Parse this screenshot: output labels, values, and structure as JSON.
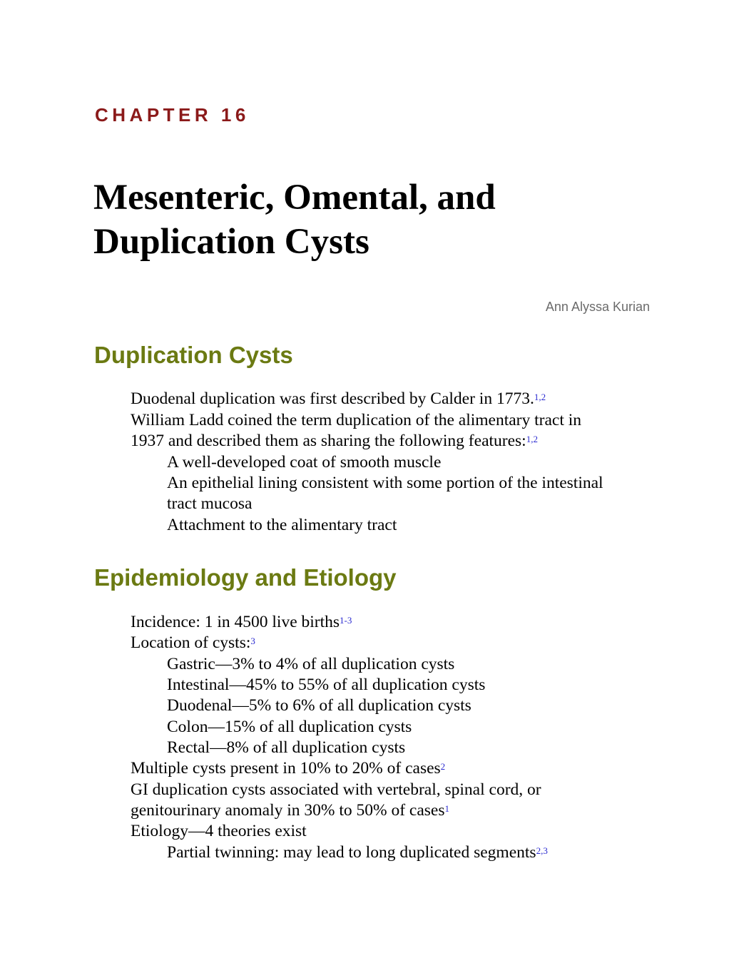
{
  "chapter_label": "CHAPTER 16",
  "title_line1": "Mesenteric, Omental, and",
  "title_line2": "Duplication Cysts",
  "author": "Ann Alyssa Kurian",
  "section1": {
    "heading": "Duplication Cysts",
    "lines": [
      {
        "text": "Duodenal duplication was first described by Calder in 1773.",
        "ref": "1,2"
      },
      {
        "text": "William Ladd coined the term duplication of the alimentary tract in",
        "ref": ""
      },
      {
        "text": "1937 and described them as sharing the following features:",
        "ref": "1,2"
      },
      {
        "text": "A well-developed coat of smooth muscle",
        "ref": ""
      },
      {
        "text": "An epithelial lining consistent with some portion of the intestinal",
        "ref": ""
      },
      {
        "text": "tract mucosa",
        "ref": ""
      },
      {
        "text": "Attachment to the alimentary tract",
        "ref": ""
      }
    ]
  },
  "section2": {
    "heading": "Epidemiology and Etiology",
    "lines": [
      {
        "text": "Incidence: 1 in 4500 live births",
        "ref": "1-3"
      },
      {
        "text": "Location of cysts:",
        "ref": "3"
      },
      {
        "text": "Gastric—3% to 4% of all duplication cysts",
        "ref": ""
      },
      {
        "text": "Intestinal—45% to 55% of all duplication cysts",
        "ref": ""
      },
      {
        "text": "Duodenal—5% to 6% of all duplication cysts",
        "ref": ""
      },
      {
        "text": "Colon—15% of all duplication cysts",
        "ref": ""
      },
      {
        "text": "Rectal—8% of all duplication cysts",
        "ref": ""
      },
      {
        "text": "Multiple cysts present in 10% to 20% of cases",
        "ref": "2"
      },
      {
        "text": "GI duplication cysts associated with vertebral, spinal cord, or",
        "ref": ""
      },
      {
        "text": "genitourinary anomaly in 30% to 50% of cases",
        "ref": "1"
      },
      {
        "text": "Etiology—4 theories exist",
        "ref": ""
      },
      {
        "text": "Partial twinning: may lead to long duplicated segments",
        "ref": "2,3"
      }
    ]
  },
  "colors": {
    "chapter": "#8b1a1a",
    "heading": "#6b7a12",
    "reference": "#2a2ad0",
    "author": "#6b6b6b"
  }
}
